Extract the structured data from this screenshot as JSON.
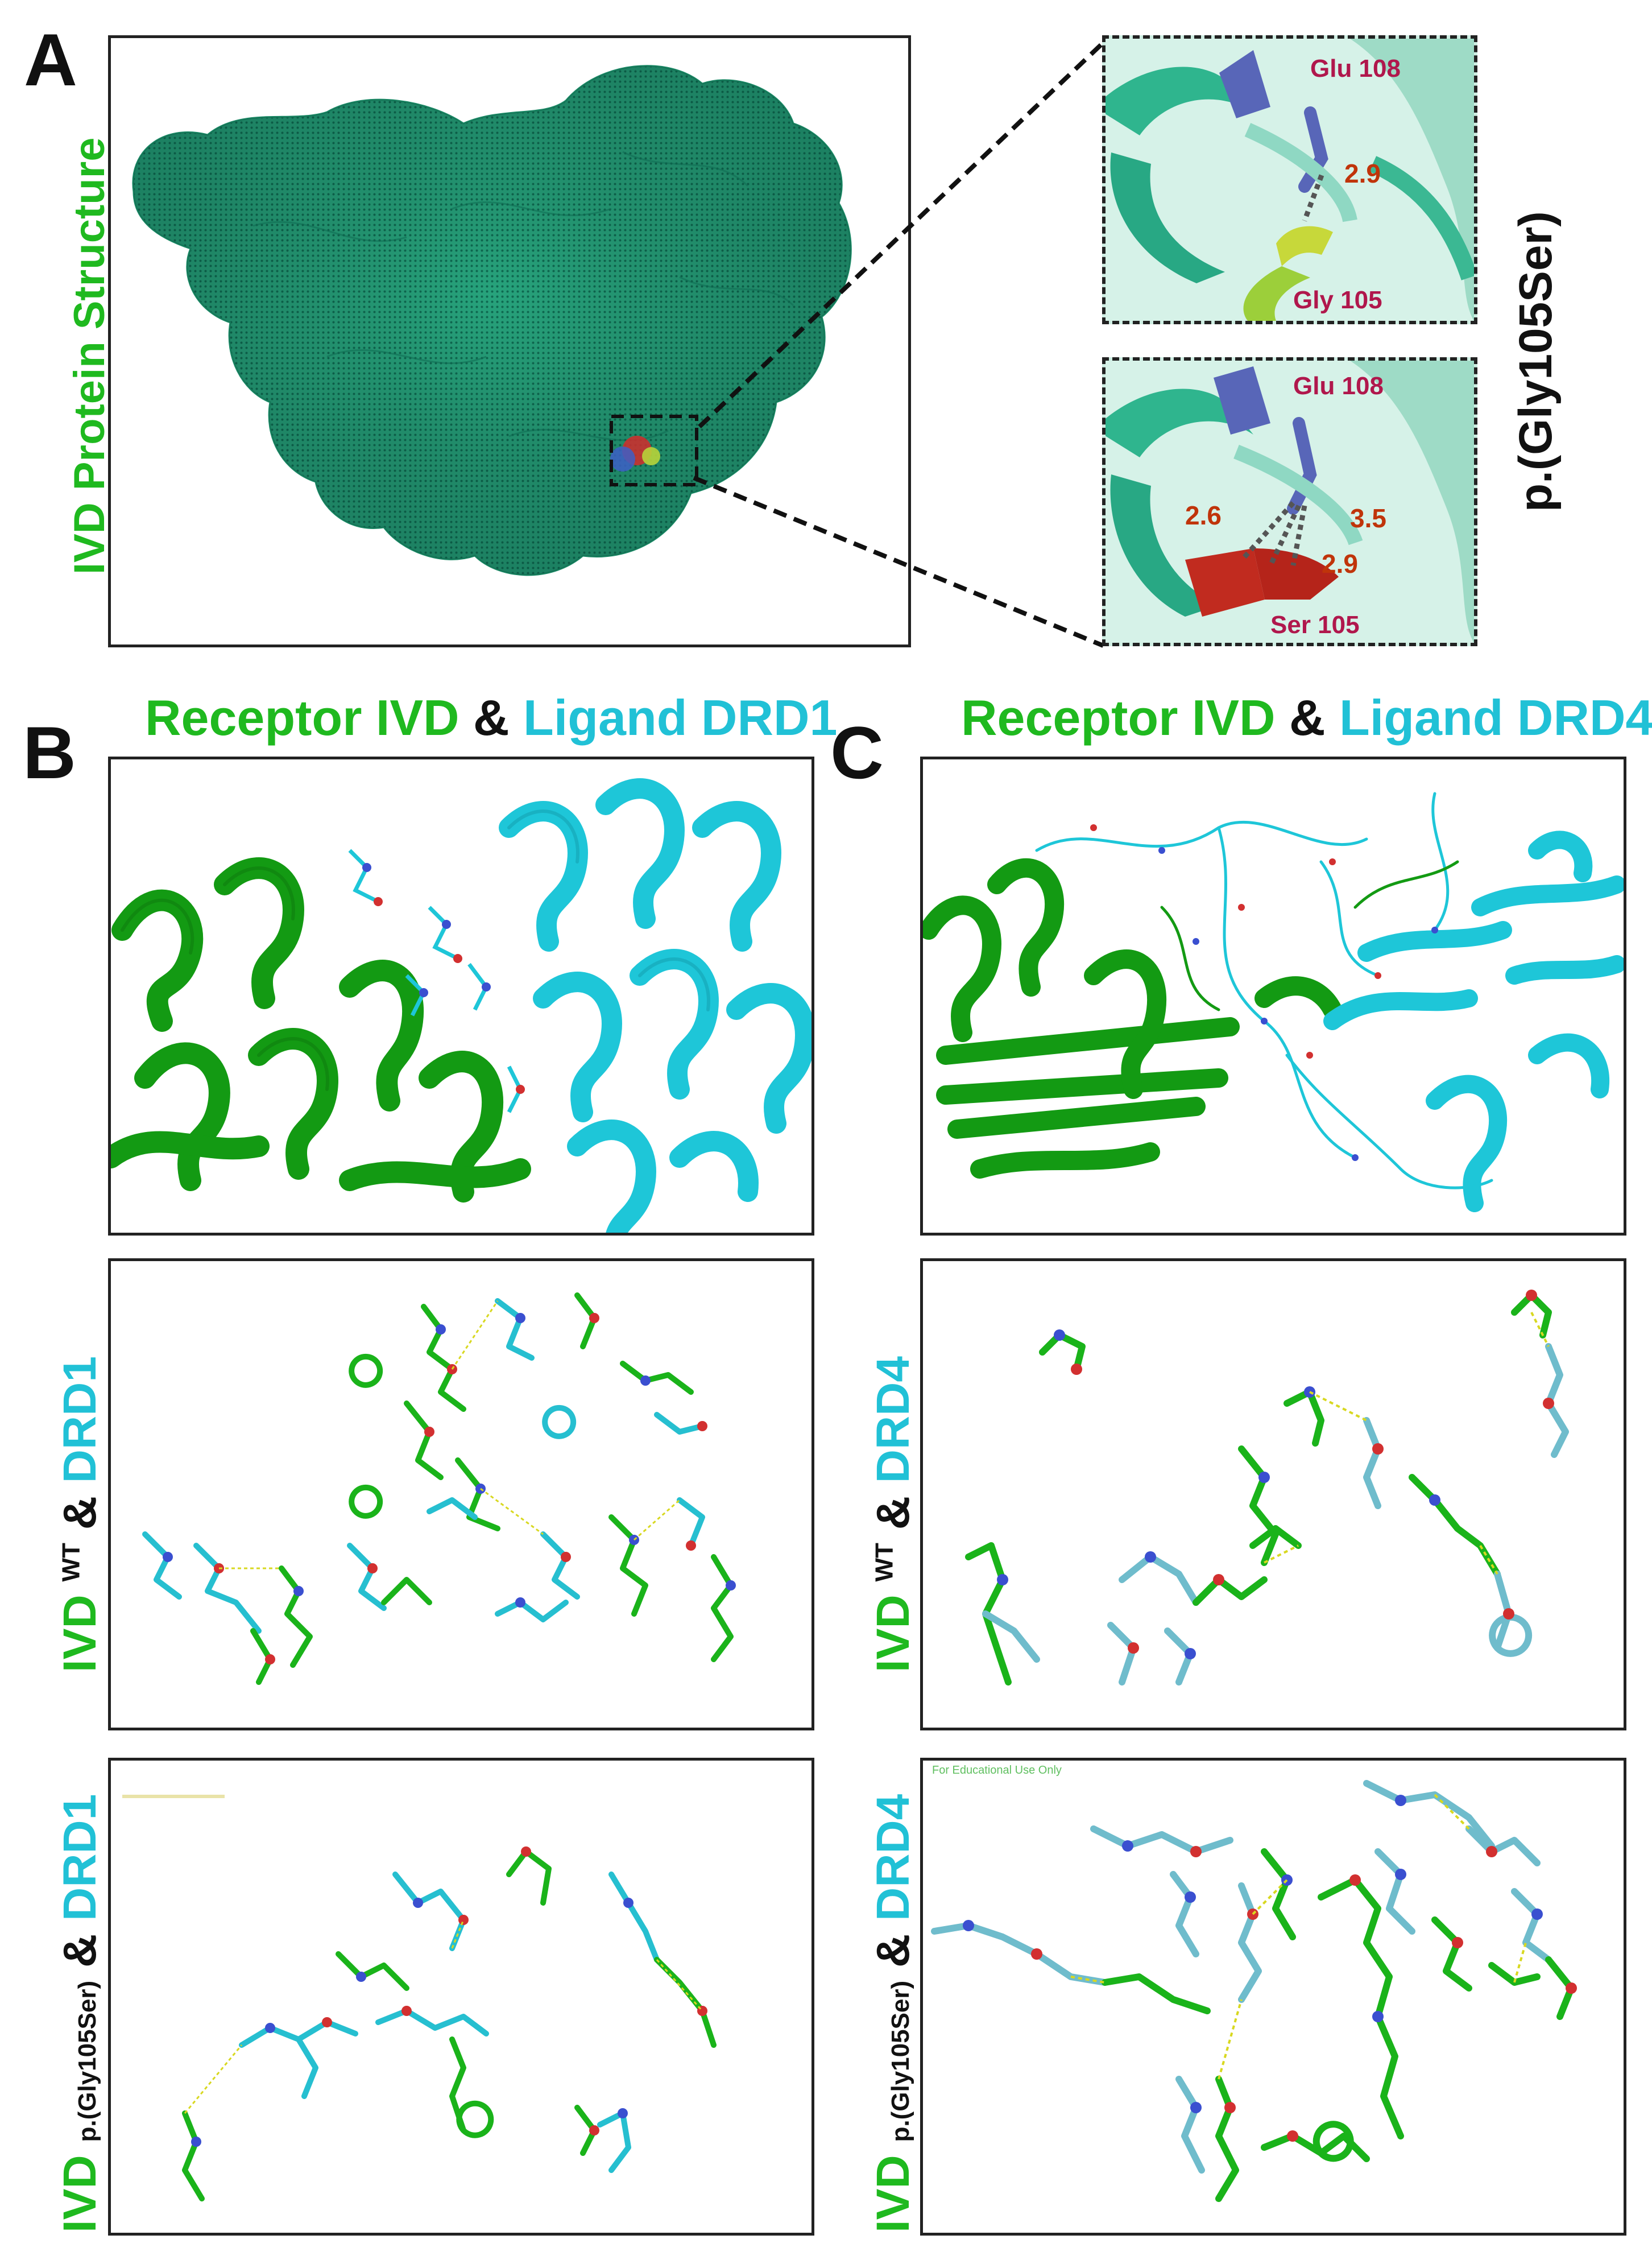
{
  "panel_a": {
    "letter": "A",
    "side_label": "IVD Protein Structure",
    "variant_label": "p.(Gly105Ser)",
    "inset_top": {
      "residue_top": "Glu 108",
      "residue_bottom": "Gly 105",
      "distance": "2.9"
    },
    "inset_bottom": {
      "residue_top": "Glu 108",
      "residue_bottom": "Ser 105",
      "distances": [
        "2.6",
        "3.5",
        "2.9"
      ]
    }
  },
  "panel_b": {
    "letter": "B",
    "title_receptor": "Receptor IVD",
    "title_amp": "&",
    "title_ligand": "Ligand DRD1",
    "row2": {
      "ivd": "IVD",
      "sup": "WT",
      "amp": "&",
      "ligand": "DRD1"
    },
    "row3": {
      "ivd": "IVD",
      "sup": "p.(Gly105Ser)",
      "amp": "&",
      "ligand": "DRD1"
    }
  },
  "panel_c": {
    "letter": "C",
    "title_receptor": "Receptor IVD",
    "title_amp": "&",
    "title_ligand": "Ligand DRD4",
    "row2": {
      "ivd": "IVD",
      "sup": "WT",
      "amp": "&",
      "ligand": "DRD4"
    },
    "row3": {
      "ivd": "IVD",
      "sup": "p.(Gly105Ser)",
      "amp": "&",
      "ligand": "DRD4"
    },
    "watermark": "For Educational Use Only"
  },
  "colors": {
    "ivd_green": "#1fb91f",
    "ligand_cyan": "#21c1d6",
    "residue_red": "#b0174c",
    "distance_orange": "#c0340a",
    "mesh_teal": "#1f9a74"
  }
}
